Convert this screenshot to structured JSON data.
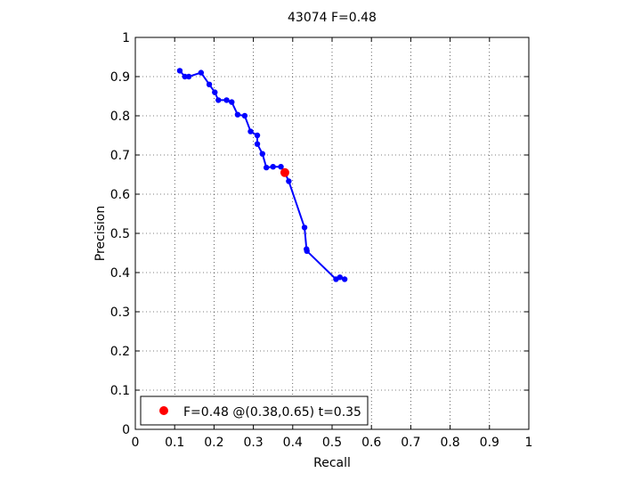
{
  "chart_data": {
    "type": "line",
    "title": "43074 F=0.48",
    "xlabel": "Recall",
    "ylabel": "Precision",
    "xlim": [
      0,
      1
    ],
    "ylim": [
      0,
      1
    ],
    "xticks": [
      "0",
      "0.1",
      "0.2",
      "0.3",
      "0.4",
      "0.5",
      "0.6",
      "0.7",
      "0.8",
      "0.9",
      "1"
    ],
    "yticks": [
      "0",
      "0.1",
      "0.2",
      "0.3",
      "0.4",
      "0.5",
      "0.6",
      "0.7",
      "0.8",
      "0.9",
      "1"
    ],
    "grid": true,
    "legend_position": "bottom-left",
    "series": [
      {
        "color": "#0000ff",
        "x": [
          0.113,
          0.126,
          0.136,
          0.167,
          0.188,
          0.202,
          0.211,
          0.232,
          0.245,
          0.26,
          0.278,
          0.293,
          0.31,
          0.31,
          0.323,
          0.333,
          0.35,
          0.37,
          0.38,
          0.39,
          0.43,
          0.435,
          0.436,
          0.51,
          0.52,
          0.532
        ],
        "y": [
          0.915,
          0.9,
          0.9,
          0.91,
          0.88,
          0.86,
          0.84,
          0.84,
          0.835,
          0.803,
          0.8,
          0.76,
          0.75,
          0.728,
          0.703,
          0.668,
          0.67,
          0.67,
          0.655,
          0.633,
          0.515,
          0.46,
          0.455,
          0.383,
          0.388,
          0.383
        ]
      }
    ],
    "highlight_point": {
      "x": 0.38,
      "y": 0.655,
      "color": "#ff0000"
    },
    "legend_text": "F=0.48 @(0.38,0.65) t=0.35"
  }
}
